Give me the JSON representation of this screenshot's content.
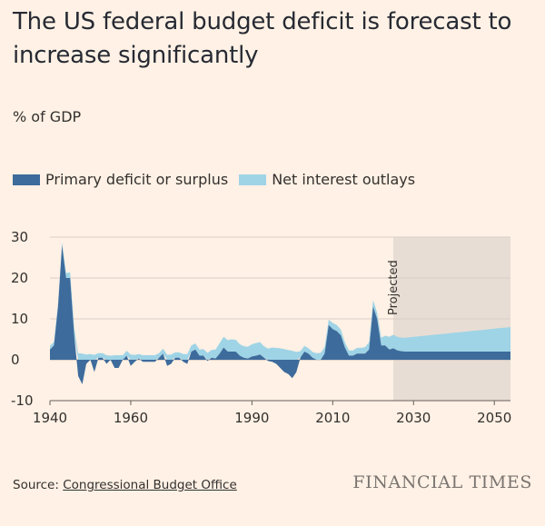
{
  "title": "The US federal budget deficit is forecast to increase significantly",
  "subtitle": "% of GDP",
  "legend": [
    {
      "label": "Primary deficit or surplus",
      "color": "#3d6b9c"
    },
    {
      "label": "Net interest outlays",
      "color": "#9fd4e6"
    }
  ],
  "source": {
    "prefix": "Source: ",
    "link": "Congressional Budget Office"
  },
  "brand": "FINANCIAL TIMES",
  "chart_data": {
    "type": "area",
    "stacked": true,
    "xlim": [
      1940,
      2054
    ],
    "ylim": [
      -10,
      30
    ],
    "x_ticks": [
      1940,
      1960,
      1990,
      2010,
      2030,
      2050
    ],
    "y_ticks": [
      30,
      20,
      10,
      0,
      -10
    ],
    "grid": true,
    "projection": {
      "label": "Projected",
      "from": 2025,
      "to": 2054,
      "color": "#e8ddd4"
    },
    "x": [
      1940,
      1941,
      1942,
      1943,
      1944,
      1945,
      1946,
      1947,
      1948,
      1949,
      1950,
      1951,
      1952,
      1953,
      1954,
      1955,
      1956,
      1957,
      1958,
      1959,
      1960,
      1961,
      1962,
      1963,
      1964,
      1965,
      1966,
      1967,
      1968,
      1969,
      1970,
      1971,
      1972,
      1973,
      1974,
      1975,
      1976,
      1977,
      1978,
      1979,
      1980,
      1981,
      1982,
      1983,
      1984,
      1985,
      1986,
      1987,
      1988,
      1989,
      1990,
      1991,
      1992,
      1993,
      1994,
      1995,
      1996,
      1997,
      1998,
      1999,
      2000,
      2001,
      2002,
      2003,
      2004,
      2005,
      2006,
      2007,
      2008,
      2009,
      2010,
      2011,
      2012,
      2013,
      2014,
      2015,
      2016,
      2017,
      2018,
      2019,
      2020,
      2021,
      2022,
      2023,
      2024,
      2025,
      2026,
      2027,
      2028,
      2029,
      2030,
      2031,
      2032,
      2033,
      2034,
      2035,
      2036,
      2037,
      2038,
      2039,
      2040,
      2041,
      2042,
      2043,
      2044,
      2045,
      2046,
      2047,
      2048,
      2049,
      2050,
      2051,
      2052,
      2053,
      2054
    ],
    "series": [
      {
        "name": "Primary deficit or surplus",
        "values": [
          2.5,
          3.5,
          13,
          28,
          20,
          20,
          6,
          -4,
          -6,
          -1,
          0,
          -3,
          0.5,
          0.5,
          -1,
          0,
          -2,
          -2,
          0,
          1,
          -1.5,
          -0.5,
          0.3,
          -0.5,
          -0.5,
          -0.5,
          -0.5,
          0.5,
          1.5,
          -1.5,
          -1,
          0.5,
          0.5,
          -0.5,
          -1,
          2,
          2.5,
          1,
          1,
          -0.3,
          0.5,
          0.3,
          1.5,
          3,
          2,
          2,
          2,
          1,
          0.5,
          0.3,
          0.8,
          1,
          1.3,
          0.5,
          -0.3,
          -0.5,
          -1,
          -2,
          -3,
          -3.5,
          -4.5,
          -3,
          0.5,
          2,
          1.5,
          0.5,
          0,
          0,
          1.5,
          8.5,
          7.5,
          7,
          6,
          3,
          1,
          1,
          1.5,
          1.5,
          1.5,
          2.5,
          13,
          10,
          3.5,
          3.5,
          2.5,
          2.8,
          2.3,
          2.1,
          2,
          2,
          2,
          2,
          2,
          2,
          2,
          2,
          2,
          2,
          2,
          2,
          2,
          2,
          2,
          2,
          2,
          2,
          2,
          2,
          2,
          2,
          2,
          2,
          2,
          2,
          2
        ]
      },
      {
        "name": "Net interest outlays",
        "values": [
          0.9,
          0.9,
          0.8,
          0.8,
          1.2,
          1.4,
          1.7,
          1.6,
          1.5,
          1.3,
          1.4,
          1.2,
          1.1,
          1.1,
          1.1,
          1,
          1.1,
          1.1,
          1.1,
          1.2,
          1.3,
          1.2,
          1.1,
          1.1,
          1.1,
          1.1,
          1.1,
          1.1,
          1.2,
          1.2,
          1.3,
          1.3,
          1.3,
          1.4,
          1.4,
          1.5,
          1.5,
          1.5,
          1.6,
          1.7,
          1.9,
          2.2,
          2.6,
          2.6,
          2.8,
          3,
          2.9,
          2.8,
          2.8,
          2.9,
          3,
          3.1,
          3,
          2.8,
          2.7,
          3,
          2.9,
          2.8,
          2.6,
          2.4,
          2.2,
          1.9,
          1.6,
          1.4,
          1.3,
          1.4,
          1.6,
          1.7,
          1.6,
          1.3,
          1.5,
          1.5,
          1.4,
          1.3,
          1.3,
          1.3,
          1.4,
          1.4,
          1.6,
          1.8,
          1.6,
          1.5,
          1.9,
          2.4,
          3.1,
          3.3,
          3.3,
          3.3,
          3.4,
          3.5,
          3.6,
          3.7,
          3.8,
          3.9,
          4,
          4.1,
          4.2,
          4.3,
          4.4,
          4.5,
          4.6,
          4.7,
          4.8,
          4.9,
          5,
          5.1,
          5.2,
          5.3,
          5.4,
          5.5,
          5.6,
          5.7,
          5.8,
          5.9,
          6
        ]
      }
    ]
  }
}
